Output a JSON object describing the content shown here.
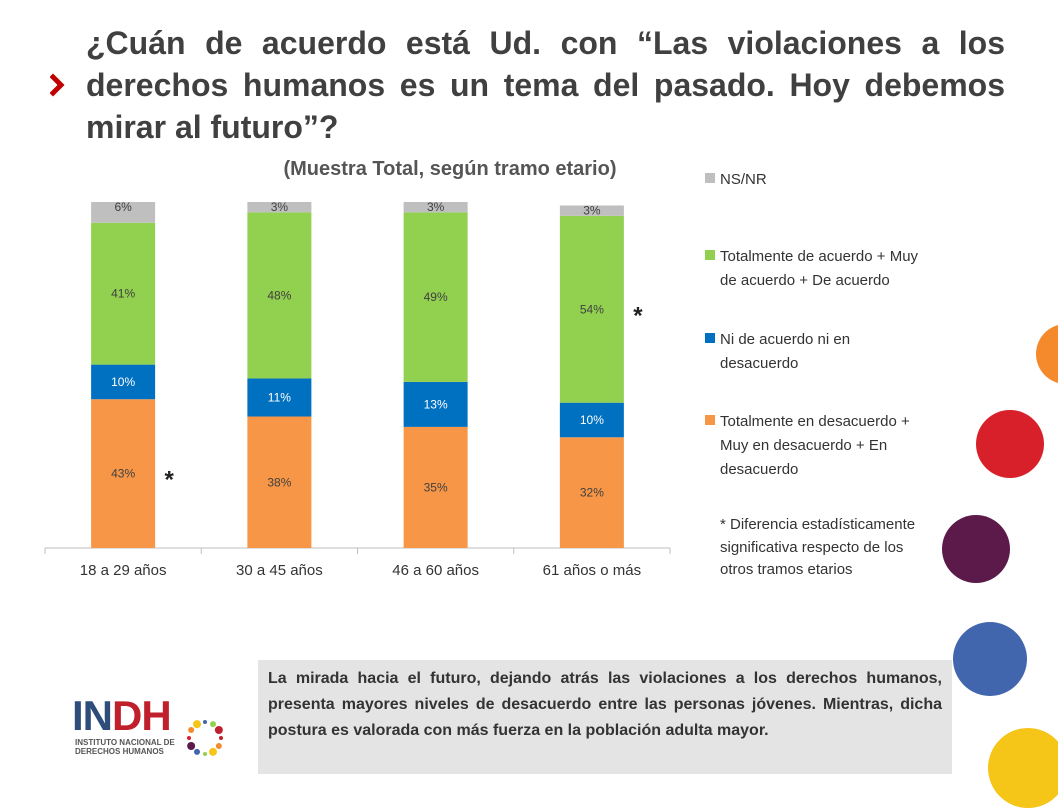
{
  "title": "¿Cuán de acuerdo está Ud. con “Las violaciones a los derechos humanos es un tema del pasado. Hoy debemos mirar al futuro”?",
  "subtitle": "(Muestra Total, según tramo etario)",
  "colors": {
    "total_desacuerdo": "#f79646",
    "ni_ni": "#0070c0",
    "total_acuerdo": "#92d050",
    "ns_nr": "#bfbfbf",
    "arrow": "#c00000",
    "logo_red": "#c0202b",
    "logo_blue": "#2e4d7b"
  },
  "chart_data": {
    "type": "bar",
    "stacked": true,
    "categories": [
      "18 a 29 años",
      "30 a 45 años",
      "46 a 60 años",
      "61 años o más"
    ],
    "series": [
      {
        "name": "Totalmente en desacuerdo + Muy en desacuerdo + En desacuerdo",
        "values": [
          43,
          38,
          35,
          32
        ],
        "labels": [
          "43%",
          "38%",
          "35%",
          "32%"
        ],
        "color": "#f79646"
      },
      {
        "name": "Ni de acuerdo ni en desacuerdo",
        "values": [
          10,
          11,
          13,
          10
        ],
        "labels": [
          "10%",
          "11%",
          "13%",
          "10%"
        ],
        "color": "#0070c0"
      },
      {
        "name": "Totalmente de acuerdo + Muy de acuerdo + De acuerdo",
        "values": [
          41,
          48,
          49,
          54
        ],
        "labels": [
          "41%",
          "48%",
          "49%",
          "54%"
        ],
        "color": "#92d050"
      },
      {
        "name": "NS/NR",
        "values": [
          6,
          3,
          3,
          3
        ],
        "labels": [
          "6%",
          "3%",
          "3%",
          "3%"
        ],
        "color": "#bfbfbf"
      }
    ],
    "significance_marks": [
      {
        "category": "18 a 29 años",
        "series": "Totalmente en desacuerdo + Muy en desacuerdo + En desacuerdo",
        "mark": "*"
      },
      {
        "category": "61 años o más",
        "series": "Totalmente de acuerdo + Muy de acuerdo + De acuerdo",
        "mark": "*"
      }
    ],
    "ylim": [
      0,
      100
    ],
    "grid": false,
    "legend_position": "right"
  },
  "legend": [
    {
      "label": "NS/NR",
      "color": "#bfbfbf"
    },
    {
      "label": "Totalmente de acuerdo + Muy de acuerdo + De acuerdo",
      "color": "#92d050"
    },
    {
      "label": "Ni de acuerdo ni en desacuerdo",
      "color": "#0070c0"
    },
    {
      "label": "Totalmente en desacuerdo + Muy en desacuerdo + En desacuerdo",
      "color": "#f79646"
    }
  ],
  "note": "* Diferencia estadísticamente significativa respecto de los otros tramos etarios",
  "info_text": "La mirada hacia el futuro, dejando atrás las violaciones a los derechos humanos, presenta mayores niveles de desacuerdo entre las personas jóvenes. Mientras, dicha postura es valorada con más fuerza en la población adulta mayor.",
  "logo": {
    "main_in": "IN",
    "main_dh": "DH",
    "sub_line1": "INSTITUTO NACIONAL DE",
    "sub_line2": "DERECHOS HUMANOS"
  },
  "decor_circles": [
    "#f58a2c",
    "#d7202a",
    "#5c1a4b",
    "#4166ad",
    "#f5c518"
  ]
}
